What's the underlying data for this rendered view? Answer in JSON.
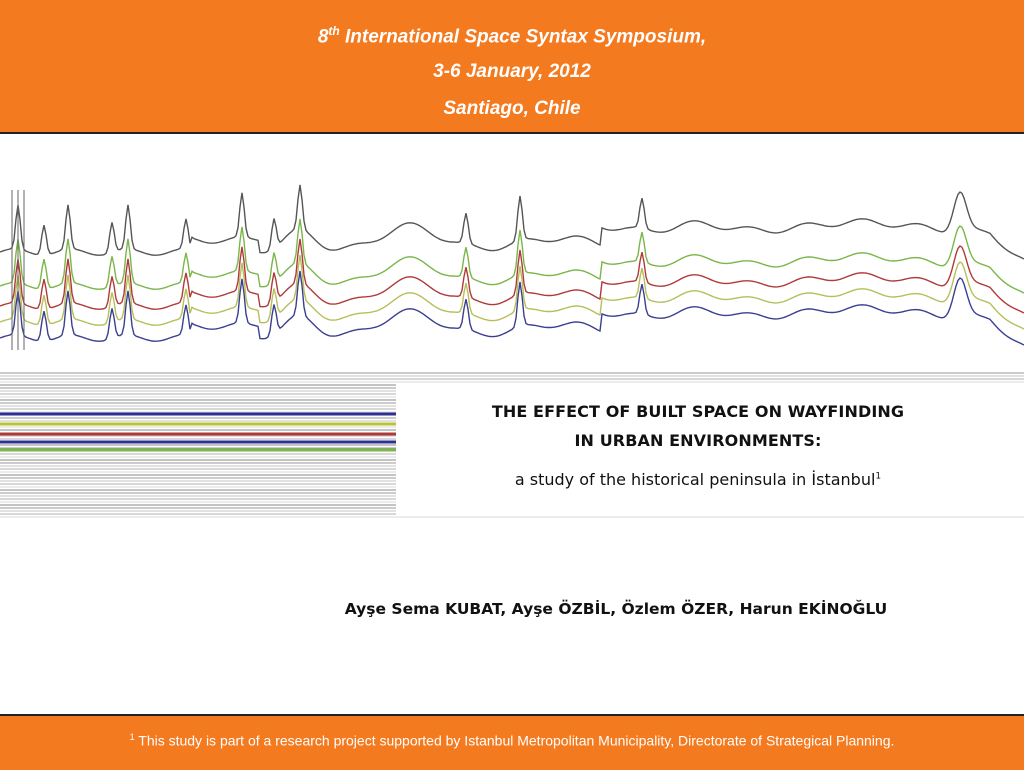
{
  "header": {
    "ordinal": "8",
    "ordinal_suffix": "th",
    "symposium": "International Space Syntax Symposium,",
    "dates": "3-6 January, 2012",
    "location": "Santiago, Chile"
  },
  "title": {
    "line1": "THE EFFECT OF BUILT SPACE ON WAYFINDING",
    "line2": "IN URBAN ENVIRONMENTS:",
    "subtitle": "a study of the historical peninsula in İstanbul",
    "footnote_mark": "1"
  },
  "authors": "Ayşe Sema KUBAT, Ayşe ÖZBİL, Özlem ÖZER, Harun EKİNOĞLU",
  "footer": {
    "mark": "1",
    "text": " This study is part of a research project supported by Istanbul Metropolitan Municipality, Directorate of Strategical Planning."
  },
  "colors": {
    "accent": "#f47a20",
    "profile_lines": [
      "#555555",
      "#7ab648",
      "#b03a3a",
      "#b6bf5a",
      "#3b3f8f"
    ]
  }
}
